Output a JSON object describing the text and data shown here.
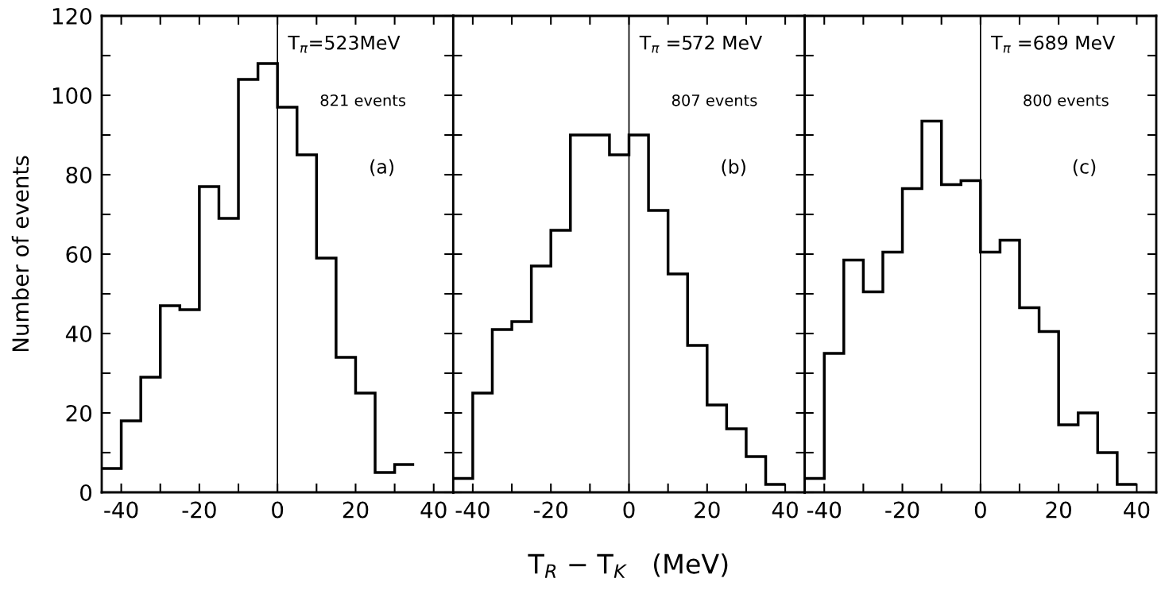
{
  "chart_data": [
    {
      "type": "histogram",
      "ylabel": "Number of events",
      "bins": [
        -45,
        -40,
        -35,
        -30,
        -25,
        -20,
        -15,
        -10,
        -5,
        0,
        5,
        10,
        15,
        20,
        25,
        30,
        35
      ],
      "values": [
        6,
        18,
        29,
        47,
        46,
        77,
        69,
        104,
        108,
        97,
        85,
        59,
        34,
        25,
        5,
        7
      ],
      "color": "#000000",
      "xlim": [
        -45,
        45
      ],
      "ylim": [
        0,
        120
      ],
      "xticks": [
        -40,
        {
          "value": -30,
          "label": null
        },
        -20,
        {
          "value": -10,
          "label": null
        },
        0,
        {
          "value": 10,
          "label": null
        },
        20,
        {
          "value": 30,
          "label": null
        },
        40
      ],
      "yticks": [
        0,
        {
          "value": 10,
          "label": null
        },
        20,
        {
          "value": 30,
          "label": null
        },
        40,
        {
          "value": 50,
          "label": null
        },
        60,
        {
          "value": 70,
          "label": null
        },
        80,
        {
          "value": 90,
          "label": null
        },
        100,
        {
          "value": 110,
          "label": null
        },
        120
      ],
      "ref_lines": [
        {
          "axis": "x",
          "value": 0,
          "label": null,
          "color": "#000000",
          "line_style": "solid"
        }
      ],
      "annotations": [
        "T$_{π}$=523MeV",
        "821 events",
        "(a)"
      ]
    },
    {
      "type": "histogram",
      "xlabel": "T$_{R}$ − T$_{K}$   (MeV)",
      "bins": [
        -45,
        -40,
        -35,
        -30,
        -25,
        -20,
        -15,
        -10,
        -5,
        0,
        5,
        10,
        15,
        20,
        25,
        30,
        35,
        40
      ],
      "values": [
        3.5,
        25,
        41,
        43,
        57,
        66,
        90,
        90,
        85,
        90,
        71,
        55,
        37,
        22,
        16,
        9,
        2
      ],
      "color": "#000000",
      "xlim": [
        -45,
        45
      ],
      "ylim": [
        0,
        120
      ],
      "tick_labels": "x",
      "xticks": [
        -40,
        {
          "value": -30,
          "label": null
        },
        -20,
        {
          "value": -10,
          "label": null
        },
        0,
        {
          "value": 10,
          "label": null
        },
        20,
        {
          "value": 30,
          "label": null
        },
        40
      ],
      "yticks": [
        0,
        {
          "value": 10,
          "label": null
        },
        20,
        {
          "value": 30,
          "label": null
        },
        40,
        {
          "value": 50,
          "label": null
        },
        60,
        {
          "value": 70,
          "label": null
        },
        80,
        {
          "value": 90,
          "label": null
        },
        100,
        {
          "value": 110,
          "label": null
        },
        120
      ],
      "ref_lines": [
        {
          "axis": "x",
          "value": 0,
          "label": null,
          "color": "#000000",
          "line_style": "solid"
        }
      ],
      "annotations": [
        "T$_{π}$ =572 MeV",
        "807 events",
        "(b)"
      ]
    },
    {
      "type": "histogram",
      "bins": [
        -45,
        -40,
        -35,
        -30,
        -25,
        -20,
        -15,
        -10,
        -5,
        0,
        5,
        10,
        15,
        20,
        25,
        30,
        35,
        40
      ],
      "values": [
        3.5,
        35,
        58.5,
        50.5,
        60.5,
        76.5,
        93.5,
        77.5,
        78.5,
        60.5,
        63.5,
        46.5,
        40.5,
        17,
        20,
        10,
        2
      ],
      "color": "#000000",
      "xlim": [
        -45,
        45
      ],
      "ylim": [
        0,
        120
      ],
      "tick_labels": "x",
      "xticks": [
        -40,
        {
          "value": -30,
          "label": null
        },
        -20,
        {
          "value": -10,
          "label": null
        },
        0,
        {
          "value": 10,
          "label": null
        },
        20,
        {
          "value": 30,
          "label": null
        },
        40
      ],
      "yticks": [
        0,
        {
          "value": 10,
          "label": null
        },
        20,
        {
          "value": 30,
          "label": null
        },
        40,
        {
          "value": 50,
          "label": null
        },
        60,
        {
          "value": 70,
          "label": null
        },
        80,
        {
          "value": 90,
          "label": null
        },
        100,
        {
          "value": 110,
          "label": null
        },
        120
      ],
      "ref_lines": [
        {
          "axis": "x",
          "value": 0,
          "label": null,
          "color": "#000000",
          "line_style": "solid"
        }
      ],
      "annotations": [
        "T$_{π}$ =689 MeV",
        "800 events",
        "(c)"
      ]
    }
  ]
}
